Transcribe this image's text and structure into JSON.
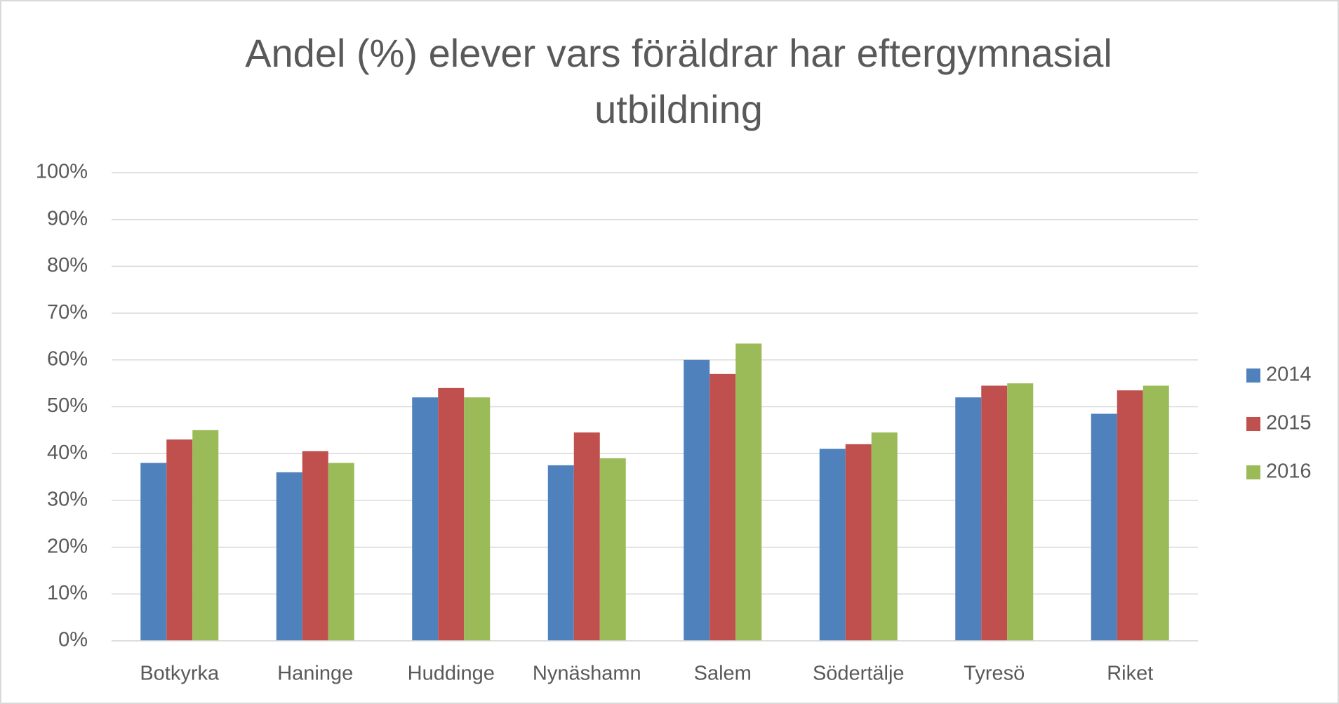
{
  "chart_data": {
    "type": "bar",
    "title": "Andel (%) elever vars föräldrar har eftergymnasial utbildning",
    "categories": [
      "Botkyrka",
      "Haninge",
      "Huddinge",
      "Nynäshamn",
      "Salem",
      "Södertälje",
      "Tyresö",
      "Riket"
    ],
    "series": [
      {
        "name": "2014",
        "color": "#4f81bd",
        "values": [
          38,
          36,
          52,
          37.5,
          60,
          41,
          52,
          48.5
        ]
      },
      {
        "name": "2015",
        "color": "#c0504d",
        "values": [
          43,
          40.5,
          54,
          44.5,
          57,
          42,
          54.5,
          53.5
        ]
      },
      {
        "name": "2016",
        "color": "#9bbb59",
        "values": [
          45,
          38,
          52,
          39,
          63.5,
          44.5,
          55,
          54.5
        ]
      }
    ],
    "ylim": [
      0,
      100
    ],
    "yticks": [
      {
        "value": 0,
        "label": "0%"
      },
      {
        "value": 10,
        "label": "10%"
      },
      {
        "value": 20,
        "label": "20%"
      },
      {
        "value": 30,
        "label": "30%"
      },
      {
        "value": 40,
        "label": "40%"
      },
      {
        "value": 50,
        "label": "50%"
      },
      {
        "value": 60,
        "label": "60%"
      },
      {
        "value": 70,
        "label": "70%"
      },
      {
        "value": 80,
        "label": "80%"
      },
      {
        "value": 90,
        "label": "90%"
      },
      {
        "value": 100,
        "label": "100%"
      }
    ],
    "grid": true,
    "legend": "right"
  }
}
